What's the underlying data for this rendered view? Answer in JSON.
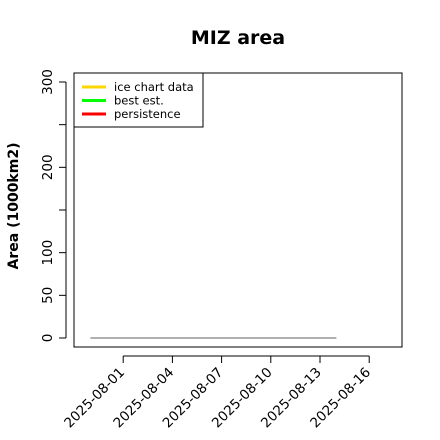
{
  "chart_data": {
    "type": "line",
    "title": "MIZ area",
    "ylabel": "Area (1000km2)",
    "xlabel": "",
    "ylim": [
      0,
      300
    ],
    "y_ticks": [
      {
        "value": 0,
        "label": "0"
      },
      {
        "value": 50,
        "label": "50"
      },
      {
        "value": 100,
        "label": "100"
      },
      {
        "value": 150,
        "label": ""
      },
      {
        "value": 200,
        "label": "200"
      },
      {
        "value": 250,
        "label": ""
      },
      {
        "value": 300,
        "label": "300"
      }
    ],
    "x_ticks": [
      "2025-08-01",
      "2025-08-04",
      "2025-08-07",
      "2025-08-10",
      "2025-08-13",
      "2025-08-16"
    ],
    "xlim": [
      "2025-07-29",
      "2025-08-18"
    ],
    "grid": false,
    "legend_position": "top-left",
    "series": [
      {
        "name": "ice chart data",
        "color": "#ffd700",
        "x": [],
        "y": []
      },
      {
        "name": "best est.",
        "color": "#00ff00",
        "x": [],
        "y": []
      },
      {
        "name": "persistence",
        "color": "#ff0000",
        "x": [],
        "y": []
      }
    ],
    "baseline": {
      "color": "#808080",
      "x": [
        "2025-07-30",
        "2025-08-14"
      ],
      "y": [
        0,
        0
      ]
    }
  }
}
